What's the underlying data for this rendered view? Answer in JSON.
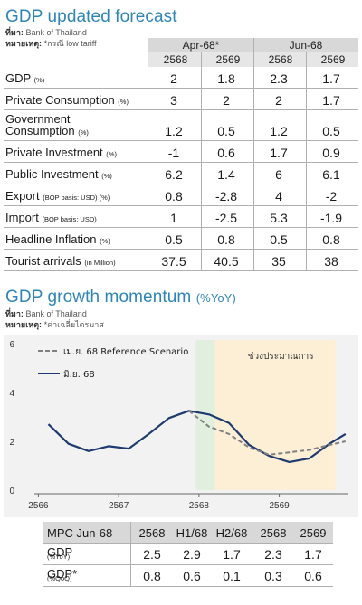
{
  "forecast": {
    "title": "GDP updated forecast",
    "source_label": "ที่มา:",
    "source_value": "Bank of Thailand",
    "note_label": "หมายเหตุ:",
    "note_value": "*กรณี low tariff",
    "period_headers": [
      "Apr-68*",
      "Jun-68"
    ],
    "year_headers": [
      "2568",
      "2569",
      "2568",
      "2569"
    ],
    "rows": [
      {
        "label": "GDP",
        "unit": "(%)",
        "values": [
          "2",
          "1.8",
          "2.3",
          "1.7"
        ]
      },
      {
        "label": "Private Consumption",
        "unit": "(%)",
        "values": [
          "3",
          "2",
          "2",
          "1.7"
        ]
      },
      {
        "label": "Government",
        "label2": "Consumption",
        "unit": "(%)",
        "values": [
          "1.2",
          "0.5",
          "1.2",
          "0.5"
        ]
      },
      {
        "label": "Private Investment",
        "unit": "(%)",
        "values": [
          "-1",
          "0.6",
          "1.7",
          "0.9"
        ]
      },
      {
        "label": "Public Investment",
        "unit": "(%)",
        "values": [
          "6.2",
          "1.4",
          "6",
          "6.1"
        ]
      },
      {
        "label": "Export",
        "unit": "(BOP basis: USD) (%)",
        "values": [
          "0.8",
          "-2.8",
          "4",
          "-2"
        ]
      },
      {
        "label": "Import",
        "unit": "(BOP basis: USD)",
        "values": [
          "1",
          "-2.5",
          "5.3",
          "-1.9"
        ]
      },
      {
        "label": "Headline Inflation",
        "unit": "(%)",
        "values": [
          "0.5",
          "0.8",
          "0.5",
          "0.8"
        ]
      },
      {
        "label": "Tourist arrivals",
        "unit": "(in Million)",
        "values": [
          "37.5",
          "40.5",
          "35",
          "38"
        ]
      }
    ]
  },
  "momentum": {
    "title": "GDP growth momentum",
    "title_unit": "(%YoY)",
    "source_label": "ที่มา:",
    "source_value": "Bank of Thailand",
    "note_label": "หมายเหตุ:",
    "note_value": "*ค่าเฉลี่ยไตรมาส"
  },
  "chart_data": {
    "type": "line",
    "x": [
      1,
      2,
      3,
      4,
      5,
      6,
      7,
      8,
      9,
      10,
      11,
      12,
      13,
      14,
      15
    ],
    "x_tick_labels": [
      {
        "x": 0.5,
        "label": "2566"
      },
      {
        "x": 4.5,
        "label": "2567"
      },
      {
        "x": 8.5,
        "label": "2568"
      },
      {
        "x": 12.5,
        "label": "2569"
      }
    ],
    "ylim": [
      0,
      6
    ],
    "y_ticks": [
      0,
      2,
      4,
      6
    ],
    "shaded_regions": [
      {
        "x_from": 8.35,
        "x_to": 9.3,
        "color": "#e1efde"
      },
      {
        "x_from": 9.3,
        "x_to": 15.3,
        "color": "#fcefd6",
        "label": "ช่วงประมาณการ"
      }
    ],
    "series": [
      {
        "name": "มิ.ย. 68",
        "style": "solid",
        "color": "#1f3a6e",
        "points": [
          [
            1,
            2.7
          ],
          [
            2,
            1.9
          ],
          [
            3,
            1.6
          ],
          [
            4,
            1.8
          ],
          [
            5,
            1.7
          ],
          [
            6,
            2.3
          ],
          [
            7,
            2.95
          ],
          [
            8,
            3.25
          ],
          [
            9,
            3.1
          ],
          [
            10,
            2.75
          ],
          [
            11,
            1.85
          ],
          [
            12,
            1.4
          ],
          [
            13,
            1.15
          ],
          [
            14,
            1.3
          ],
          [
            15,
            1.9
          ],
          [
            15.8,
            2.3
          ]
        ]
      },
      {
        "name": "เม.ย. 68 Reference Scenario",
        "style": "dashed",
        "color": "#808080",
        "points": [
          [
            8,
            3.25
          ],
          [
            9,
            2.6
          ],
          [
            10,
            2.3
          ],
          [
            11,
            1.75
          ],
          [
            12,
            1.45
          ],
          [
            13,
            1.55
          ],
          [
            14,
            1.65
          ],
          [
            15,
            1.85
          ],
          [
            15.8,
            2.0
          ]
        ]
      }
    ]
  },
  "mpc": {
    "headers": [
      "MPC Jun-68",
      "2568",
      "H1/68",
      "H2/68",
      "2568",
      "2569"
    ],
    "rows": [
      {
        "label": "GDP",
        "unit": "(%YoY)",
        "values": [
          "2.5",
          "2.9",
          "1.7",
          "2.3",
          "1.7"
        ]
      },
      {
        "label": "GDP*",
        "unit": "(%QoQ)",
        "values": [
          "0.8",
          "0.6",
          "0.1",
          "0.3",
          "0.6"
        ]
      }
    ]
  }
}
